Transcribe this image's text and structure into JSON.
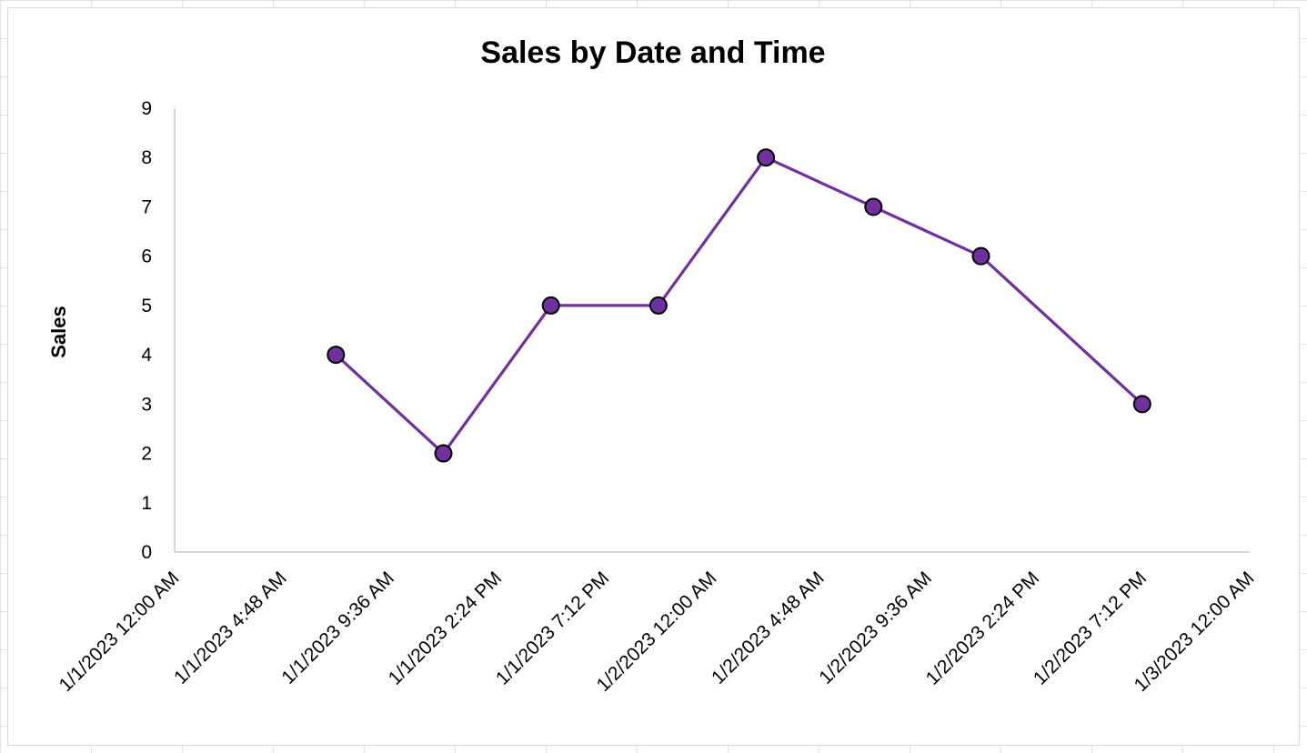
{
  "chart_data": {
    "type": "line",
    "title": "Sales by Date and Time",
    "xlabel": "",
    "ylabel": "Sales",
    "ylim": [
      0,
      9
    ],
    "y_ticks": [
      "0",
      "1",
      "2",
      "3",
      "4",
      "5",
      "6",
      "7",
      "8",
      "9"
    ],
    "x_ticks": [
      "1/1/2023 12:00 AM",
      "1/1/2023 4:48 AM",
      "1/1/2023 9:36 AM",
      "1/1/2023 2:24 PM",
      "1/1/2023 7:12 PM",
      "1/2/2023 12:00 AM",
      "1/2/2023 4:48 AM",
      "1/2/2023 9:36 AM",
      "1/2/2023 2:24 PM",
      "1/2/2023 7:12 PM",
      "1/3/2023 12:00 AM"
    ],
    "xlim": [
      "1/1/2023 12:00 AM",
      "1/3/2023 12:00 AM"
    ],
    "grid": false,
    "legend": "none",
    "series": [
      {
        "color": "#7030a0",
        "points": [
          {
            "x": "1/1/2023 7:12 AM",
            "y": 4
          },
          {
            "x": "1/1/2023 12:00 PM",
            "y": 2
          },
          {
            "x": "1/1/2023 4:48 PM",
            "y": 5
          },
          {
            "x": "1/1/2023 9:36 PM",
            "y": 5
          },
          {
            "x": "1/2/2023 2:24 AM",
            "y": 8
          },
          {
            "x": "1/2/2023 7:12 AM",
            "y": 7
          },
          {
            "x": "1/2/2023 12:00 PM",
            "y": 6
          },
          {
            "x": "1/2/2023 7:12 PM",
            "y": 3
          }
        ]
      }
    ]
  }
}
